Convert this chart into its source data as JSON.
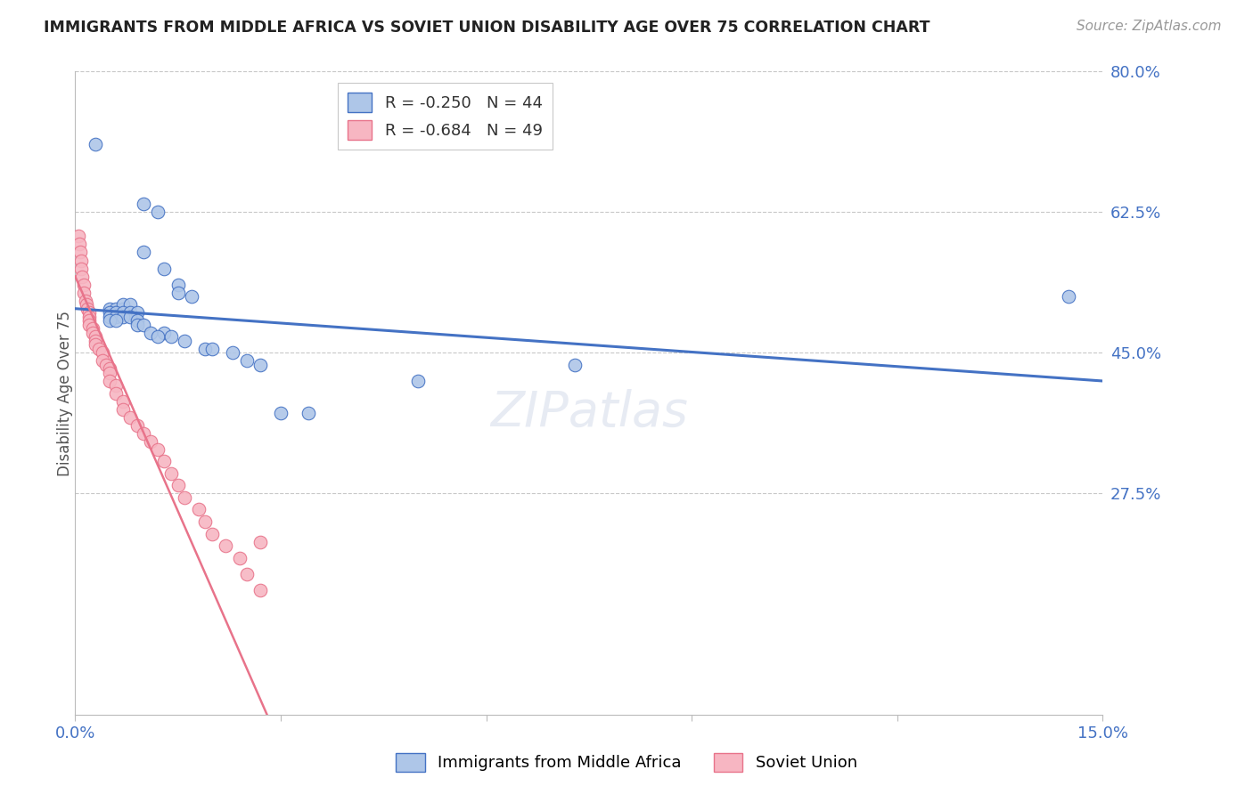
{
  "title": "IMMIGRANTS FROM MIDDLE AFRICA VS SOVIET UNION DISABILITY AGE OVER 75 CORRELATION CHART",
  "source": "Source: ZipAtlas.com",
  "ylabel": "Disability Age Over 75",
  "xlim": [
    0.0,
    0.15
  ],
  "ylim": [
    0.0,
    0.8
  ],
  "yticks": [
    0.275,
    0.45,
    0.625,
    0.8
  ],
  "ytick_labels": [
    "27.5%",
    "45.0%",
    "62.5%",
    "80.0%"
  ],
  "xticks": [
    0.0,
    0.03,
    0.06,
    0.09,
    0.12,
    0.15
  ],
  "xtick_labels": [
    "0.0%",
    "",
    "",
    "",
    "",
    "15.0%"
  ],
  "blue_R": -0.25,
  "blue_N": 44,
  "pink_R": -0.684,
  "pink_N": 49,
  "blue_color": "#aec6e8",
  "pink_color": "#f7b6c2",
  "blue_line_color": "#4472c4",
  "pink_line_color": "#e8738a",
  "blue_scatter": [
    [
      0.003,
      0.71
    ],
    [
      0.01,
      0.635
    ],
    [
      0.012,
      0.625
    ],
    [
      0.01,
      0.575
    ],
    [
      0.013,
      0.555
    ],
    [
      0.015,
      0.535
    ],
    [
      0.015,
      0.525
    ],
    [
      0.017,
      0.52
    ],
    [
      0.005,
      0.505
    ],
    [
      0.006,
      0.505
    ],
    [
      0.007,
      0.505
    ],
    [
      0.007,
      0.51
    ],
    [
      0.008,
      0.51
    ],
    [
      0.005,
      0.5
    ],
    [
      0.006,
      0.5
    ],
    [
      0.007,
      0.5
    ],
    [
      0.008,
      0.5
    ],
    [
      0.009,
      0.5
    ],
    [
      0.005,
      0.495
    ],
    [
      0.006,
      0.495
    ],
    [
      0.007,
      0.495
    ],
    [
      0.008,
      0.495
    ],
    [
      0.005,
      0.49
    ],
    [
      0.006,
      0.49
    ],
    [
      0.009,
      0.49
    ],
    [
      0.009,
      0.485
    ],
    [
      0.01,
      0.485
    ],
    [
      0.011,
      0.475
    ],
    [
      0.013,
      0.475
    ],
    [
      0.012,
      0.47
    ],
    [
      0.014,
      0.47
    ],
    [
      0.016,
      0.465
    ],
    [
      0.019,
      0.455
    ],
    [
      0.02,
      0.455
    ],
    [
      0.023,
      0.45
    ],
    [
      0.025,
      0.44
    ],
    [
      0.027,
      0.435
    ],
    [
      0.03,
      0.375
    ],
    [
      0.034,
      0.375
    ],
    [
      0.05,
      0.415
    ],
    [
      0.073,
      0.435
    ],
    [
      0.145,
      0.52
    ]
  ],
  "pink_scatter": [
    [
      0.0005,
      0.595
    ],
    [
      0.0006,
      0.585
    ],
    [
      0.0007,
      0.575
    ],
    [
      0.0008,
      0.565
    ],
    [
      0.0009,
      0.555
    ],
    [
      0.001,
      0.545
    ],
    [
      0.0012,
      0.535
    ],
    [
      0.0013,
      0.525
    ],
    [
      0.0015,
      0.515
    ],
    [
      0.0016,
      0.51
    ],
    [
      0.0018,
      0.505
    ],
    [
      0.002,
      0.5
    ],
    [
      0.002,
      0.495
    ],
    [
      0.002,
      0.49
    ],
    [
      0.002,
      0.485
    ],
    [
      0.0025,
      0.48
    ],
    [
      0.0025,
      0.475
    ],
    [
      0.003,
      0.47
    ],
    [
      0.003,
      0.465
    ],
    [
      0.003,
      0.46
    ],
    [
      0.0035,
      0.455
    ],
    [
      0.004,
      0.45
    ],
    [
      0.004,
      0.44
    ],
    [
      0.0045,
      0.435
    ],
    [
      0.005,
      0.43
    ],
    [
      0.005,
      0.425
    ],
    [
      0.005,
      0.415
    ],
    [
      0.006,
      0.41
    ],
    [
      0.006,
      0.4
    ],
    [
      0.007,
      0.39
    ],
    [
      0.007,
      0.38
    ],
    [
      0.008,
      0.37
    ],
    [
      0.009,
      0.36
    ],
    [
      0.01,
      0.35
    ],
    [
      0.011,
      0.34
    ],
    [
      0.012,
      0.33
    ],
    [
      0.013,
      0.315
    ],
    [
      0.014,
      0.3
    ],
    [
      0.015,
      0.285
    ],
    [
      0.016,
      0.27
    ],
    [
      0.018,
      0.255
    ],
    [
      0.019,
      0.24
    ],
    [
      0.02,
      0.225
    ],
    [
      0.022,
      0.21
    ],
    [
      0.024,
      0.195
    ],
    [
      0.025,
      0.175
    ],
    [
      0.027,
      0.155
    ],
    [
      0.027,
      0.215
    ]
  ],
  "blue_line_x": [
    0.0,
    0.15
  ],
  "blue_line_y": [
    0.505,
    0.415
  ],
  "pink_line_x": [
    0.0,
    0.028
  ],
  "pink_line_y": [
    0.545,
    0.0
  ]
}
